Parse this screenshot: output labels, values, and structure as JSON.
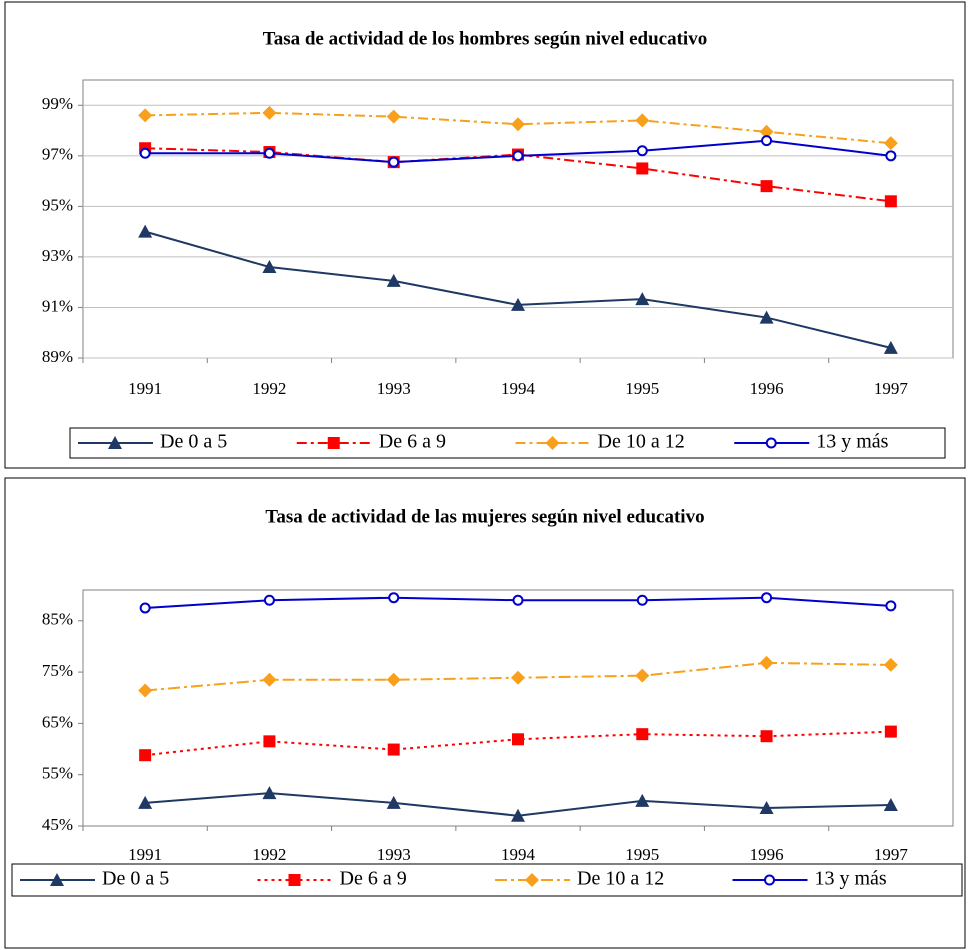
{
  "chart_data": [
    {
      "type": "line",
      "title": "Tasa de actividad de los hombres según nivel educativo",
      "categories": [
        "1991",
        "1992",
        "1993",
        "1994",
        "1995",
        "1996",
        "1997"
      ],
      "ylim": [
        89,
        100
      ],
      "yticks": [
        {
          "value": 89,
          "label": "89%"
        },
        {
          "value": 91,
          "label": "91%"
        },
        {
          "value": 93,
          "label": "93%"
        },
        {
          "value": 95,
          "label": "95%"
        },
        {
          "value": 97,
          "label": "97%"
        },
        {
          "value": 99,
          "label": "99%"
        }
      ],
      "grid": true,
      "series": [
        {
          "name": "De 0 a 5",
          "color": "#1f3864",
          "values": [
            94.0,
            92.6,
            92.05,
            91.1,
            91.33,
            90.6,
            89.4
          ]
        },
        {
          "name": "De 6 a 9",
          "color": "#ff0000",
          "values": [
            97.3,
            97.15,
            96.75,
            97.05,
            96.5,
            95.8,
            95.2
          ]
        },
        {
          "name": "De 10 a 12",
          "color": "#f8a01c",
          "values": [
            98.6,
            98.7,
            98.55,
            98.25,
            98.4,
            97.95,
            97.5
          ]
        },
        {
          "name": "13 y más",
          "color": "#0000cc",
          "values": [
            97.1,
            97.1,
            96.75,
            97.0,
            97.2,
            97.6,
            97.0
          ]
        }
      ]
    },
    {
      "type": "line",
      "title": "Tasa de actividad de las mujeres según nivel educativo",
      "categories": [
        "1991",
        "1992",
        "1993",
        "1994",
        "1995",
        "1996",
        "1997"
      ],
      "ylim": [
        45,
        91
      ],
      "yticks": [
        {
          "value": 45,
          "label": "45%"
        },
        {
          "value": 55,
          "label": "55%"
        },
        {
          "value": 65,
          "label": "65%"
        },
        {
          "value": 75,
          "label": "75%"
        },
        {
          "value": 85,
          "label": "85%"
        }
      ],
      "grid": false,
      "series": [
        {
          "name": "De 0 a 5",
          "color": "#1f3864",
          "values": [
            49.5,
            51.4,
            49.5,
            47.0,
            49.9,
            48.5,
            49.1
          ]
        },
        {
          "name": "De 6 a 9",
          "color": "#ff0000",
          "values": [
            58.8,
            61.5,
            59.9,
            61.9,
            62.9,
            62.5,
            63.4
          ]
        },
        {
          "name": "De 10 a 12",
          "color": "#f8a01c",
          "values": [
            71.4,
            73.5,
            73.5,
            73.9,
            74.3,
            76.8,
            76.4
          ]
        },
        {
          "name": "13 y más",
          "color": "#0000cc",
          "values": [
            87.5,
            89.0,
            89.5,
            89.0,
            89.0,
            89.5,
            87.9
          ]
        }
      ]
    }
  ]
}
